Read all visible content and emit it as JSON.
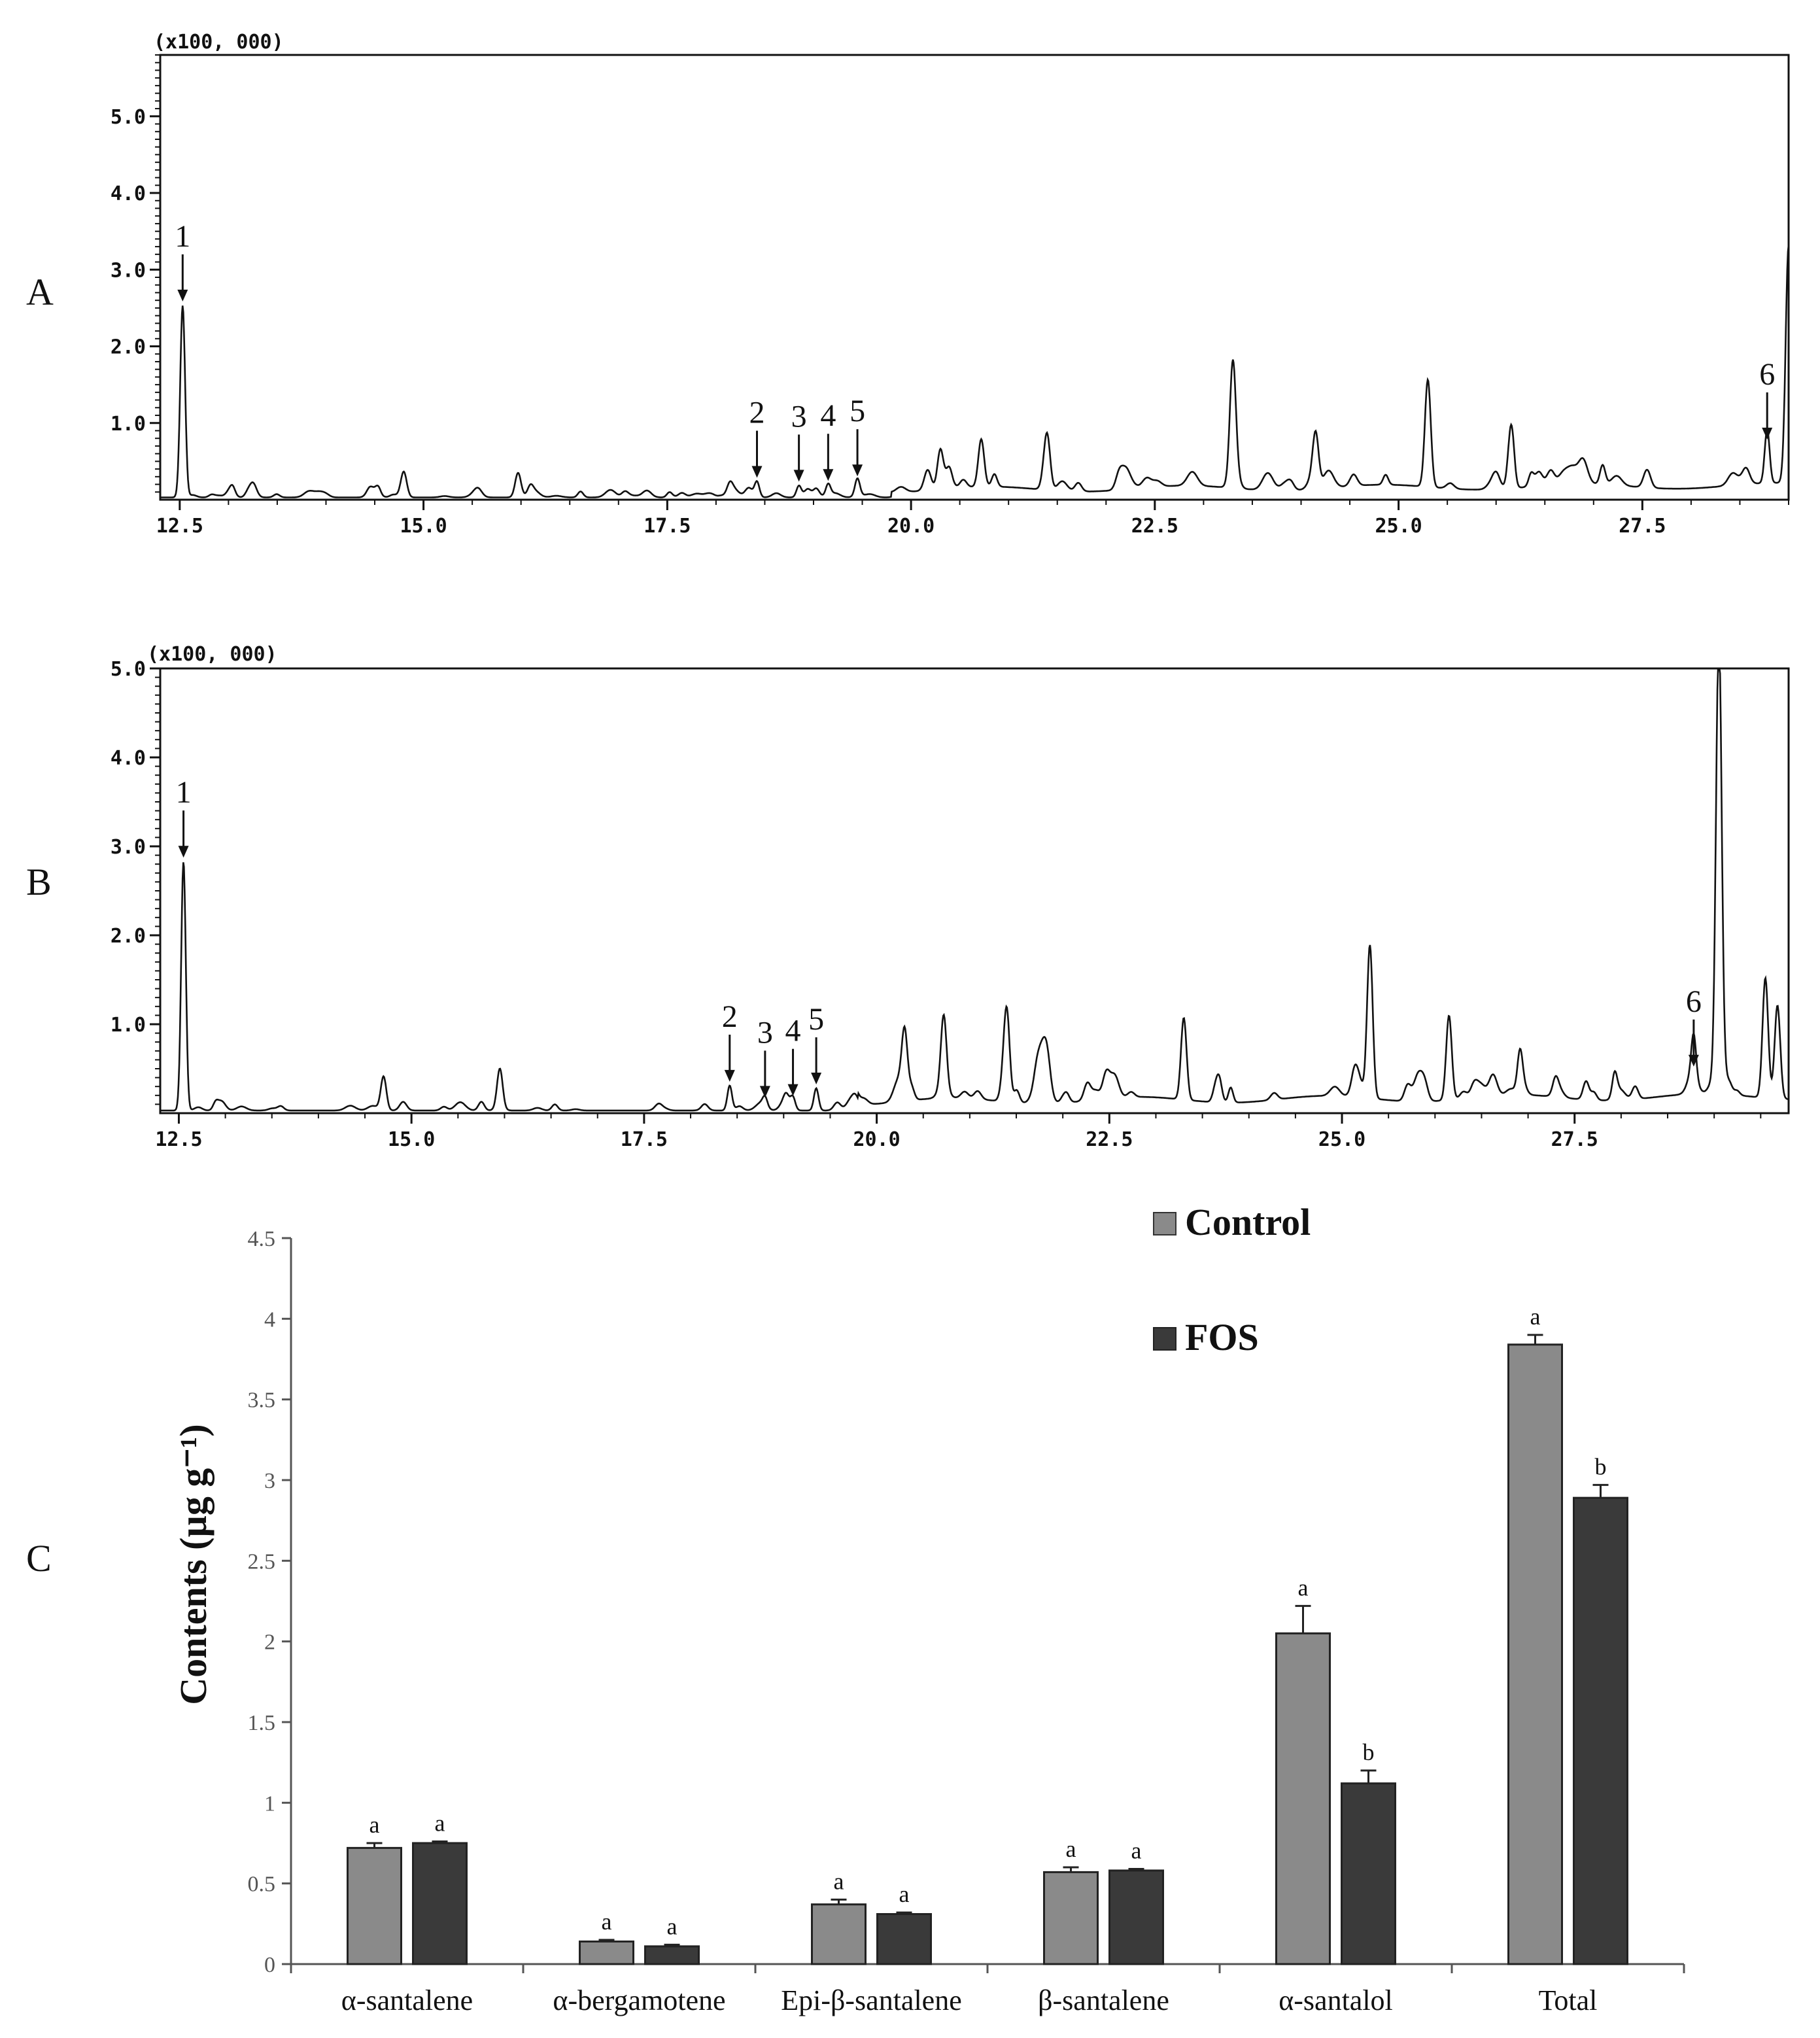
{
  "panels": {
    "A": {
      "label": "A",
      "multiplier": "(x100, 000)",
      "y_ticks": [
        "1.0",
        "2.0",
        "3.0",
        "4.0",
        "5.0"
      ],
      "x_ticks": [
        "12.5",
        "15.0",
        "17.5",
        "20.0",
        "22.5",
        "25.0",
        "27.5"
      ],
      "peak_labels": [
        "1",
        "2",
        "3",
        "4",
        "5",
        "6"
      ]
    },
    "B": {
      "label": "B",
      "multiplier": "(x100, 000)",
      "y_ticks": [
        "1.0",
        "2.0",
        "3.0",
        "4.0",
        "5.0"
      ],
      "x_ticks": [
        "12.5",
        "15.0",
        "17.5",
        "20.0",
        "22.5",
        "25.0",
        "27.5"
      ],
      "peak_labels": [
        "1",
        "2",
        "3",
        "4",
        "5",
        "6"
      ]
    },
    "C": {
      "label": "C"
    }
  },
  "chart_data": [
    {
      "type": "line",
      "panel": "A",
      "xlim": [
        12.3,
        29.0
      ],
      "ylim": [
        0,
        5.8
      ],
      "x_ticks": [
        12.5,
        15.0,
        17.5,
        20.0,
        22.5,
        25.0,
        27.5
      ],
      "y_ticks": [
        1.0,
        2.0,
        3.0,
        4.0,
        5.0
      ],
      "peaks": [
        {
          "label": "1",
          "x": 12.53,
          "y": 2.5
        },
        {
          "label": "2",
          "x": 18.42,
          "y": 0.2
        },
        {
          "label": "3",
          "x": 18.85,
          "y": 0.15
        },
        {
          "label": "4",
          "x": 19.15,
          "y": 0.16
        },
        {
          "label": "5",
          "x": 19.45,
          "y": 0.22
        },
        {
          "label": "6",
          "x": 28.78,
          "y": 0.7
        }
      ],
      "major_peaks": [
        [
          14.8,
          0.28
        ],
        [
          15.97,
          0.32
        ],
        [
          20.3,
          0.5
        ],
        [
          20.72,
          0.62
        ],
        [
          21.4,
          0.55
        ],
        [
          23.3,
          1.4
        ],
        [
          24.15,
          0.65
        ],
        [
          25.3,
          1.4
        ],
        [
          26.15,
          0.67
        ],
        [
          29.0,
          3.1
        ]
      ]
    },
    {
      "type": "line",
      "panel": "B",
      "xlim": [
        12.3,
        29.8
      ],
      "ylim": [
        0,
        5.0
      ],
      "x_ticks": [
        12.5,
        15.0,
        17.5,
        20.0,
        22.5,
        25.0,
        27.5
      ],
      "y_ticks": [
        1.0,
        2.0,
        3.0,
        4.0,
        5.0
      ],
      "peaks": [
        {
          "label": "1",
          "x": 12.55,
          "y": 2.8
        },
        {
          "label": "2",
          "x": 18.42,
          "y": 0.28
        },
        {
          "label": "3",
          "x": 18.8,
          "y": 0.1
        },
        {
          "label": "4",
          "x": 19.1,
          "y": 0.12
        },
        {
          "label": "5",
          "x": 19.35,
          "y": 0.25
        },
        {
          "label": "6",
          "x": 28.78,
          "y": 0.45
        }
      ],
      "major_peaks": [
        [
          14.7,
          0.38
        ],
        [
          15.95,
          0.45
        ],
        [
          20.3,
          0.68
        ],
        [
          20.72,
          0.8
        ],
        [
          21.4,
          0.75
        ],
        [
          23.3,
          0.92
        ],
        [
          25.3,
          1.72
        ],
        [
          26.15,
          0.95
        ],
        [
          29.05,
          5.0
        ],
        [
          29.55,
          1.35
        ],
        [
          29.68,
          1.05
        ]
      ]
    },
    {
      "type": "bar",
      "panel": "C",
      "ylabel": "Contents (µg g⁻¹)",
      "ylim": [
        0,
        4.5
      ],
      "y_ticks": [
        "0",
        "0.5",
        "1",
        "1.5",
        "2",
        "2.5",
        "3",
        "3.5",
        "4",
        "4.5"
      ],
      "categories": [
        "α-santalene",
        "α-bergamotene",
        "Epi-β-santalene",
        "β-santalene",
        "α-santalol",
        "Total"
      ],
      "series": [
        {
          "name": "Control",
          "color": "#8a8a8a",
          "values": [
            0.72,
            0.14,
            0.37,
            0.57,
            2.05,
            3.84
          ],
          "errors": [
            0.03,
            0.01,
            0.03,
            0.03,
            0.17,
            0.06
          ],
          "sig": [
            "a",
            "a",
            "a",
            "a",
            "a",
            "a"
          ]
        },
        {
          "name": "FOS",
          "color": "#3a3a3a",
          "values": [
            0.75,
            0.11,
            0.31,
            0.58,
            1.12,
            2.89
          ],
          "errors": [
            0.01,
            0.01,
            0.01,
            0.01,
            0.08,
            0.08
          ],
          "sig": [
            "a",
            "a",
            "a",
            "a",
            "b",
            "b"
          ]
        }
      ]
    }
  ]
}
